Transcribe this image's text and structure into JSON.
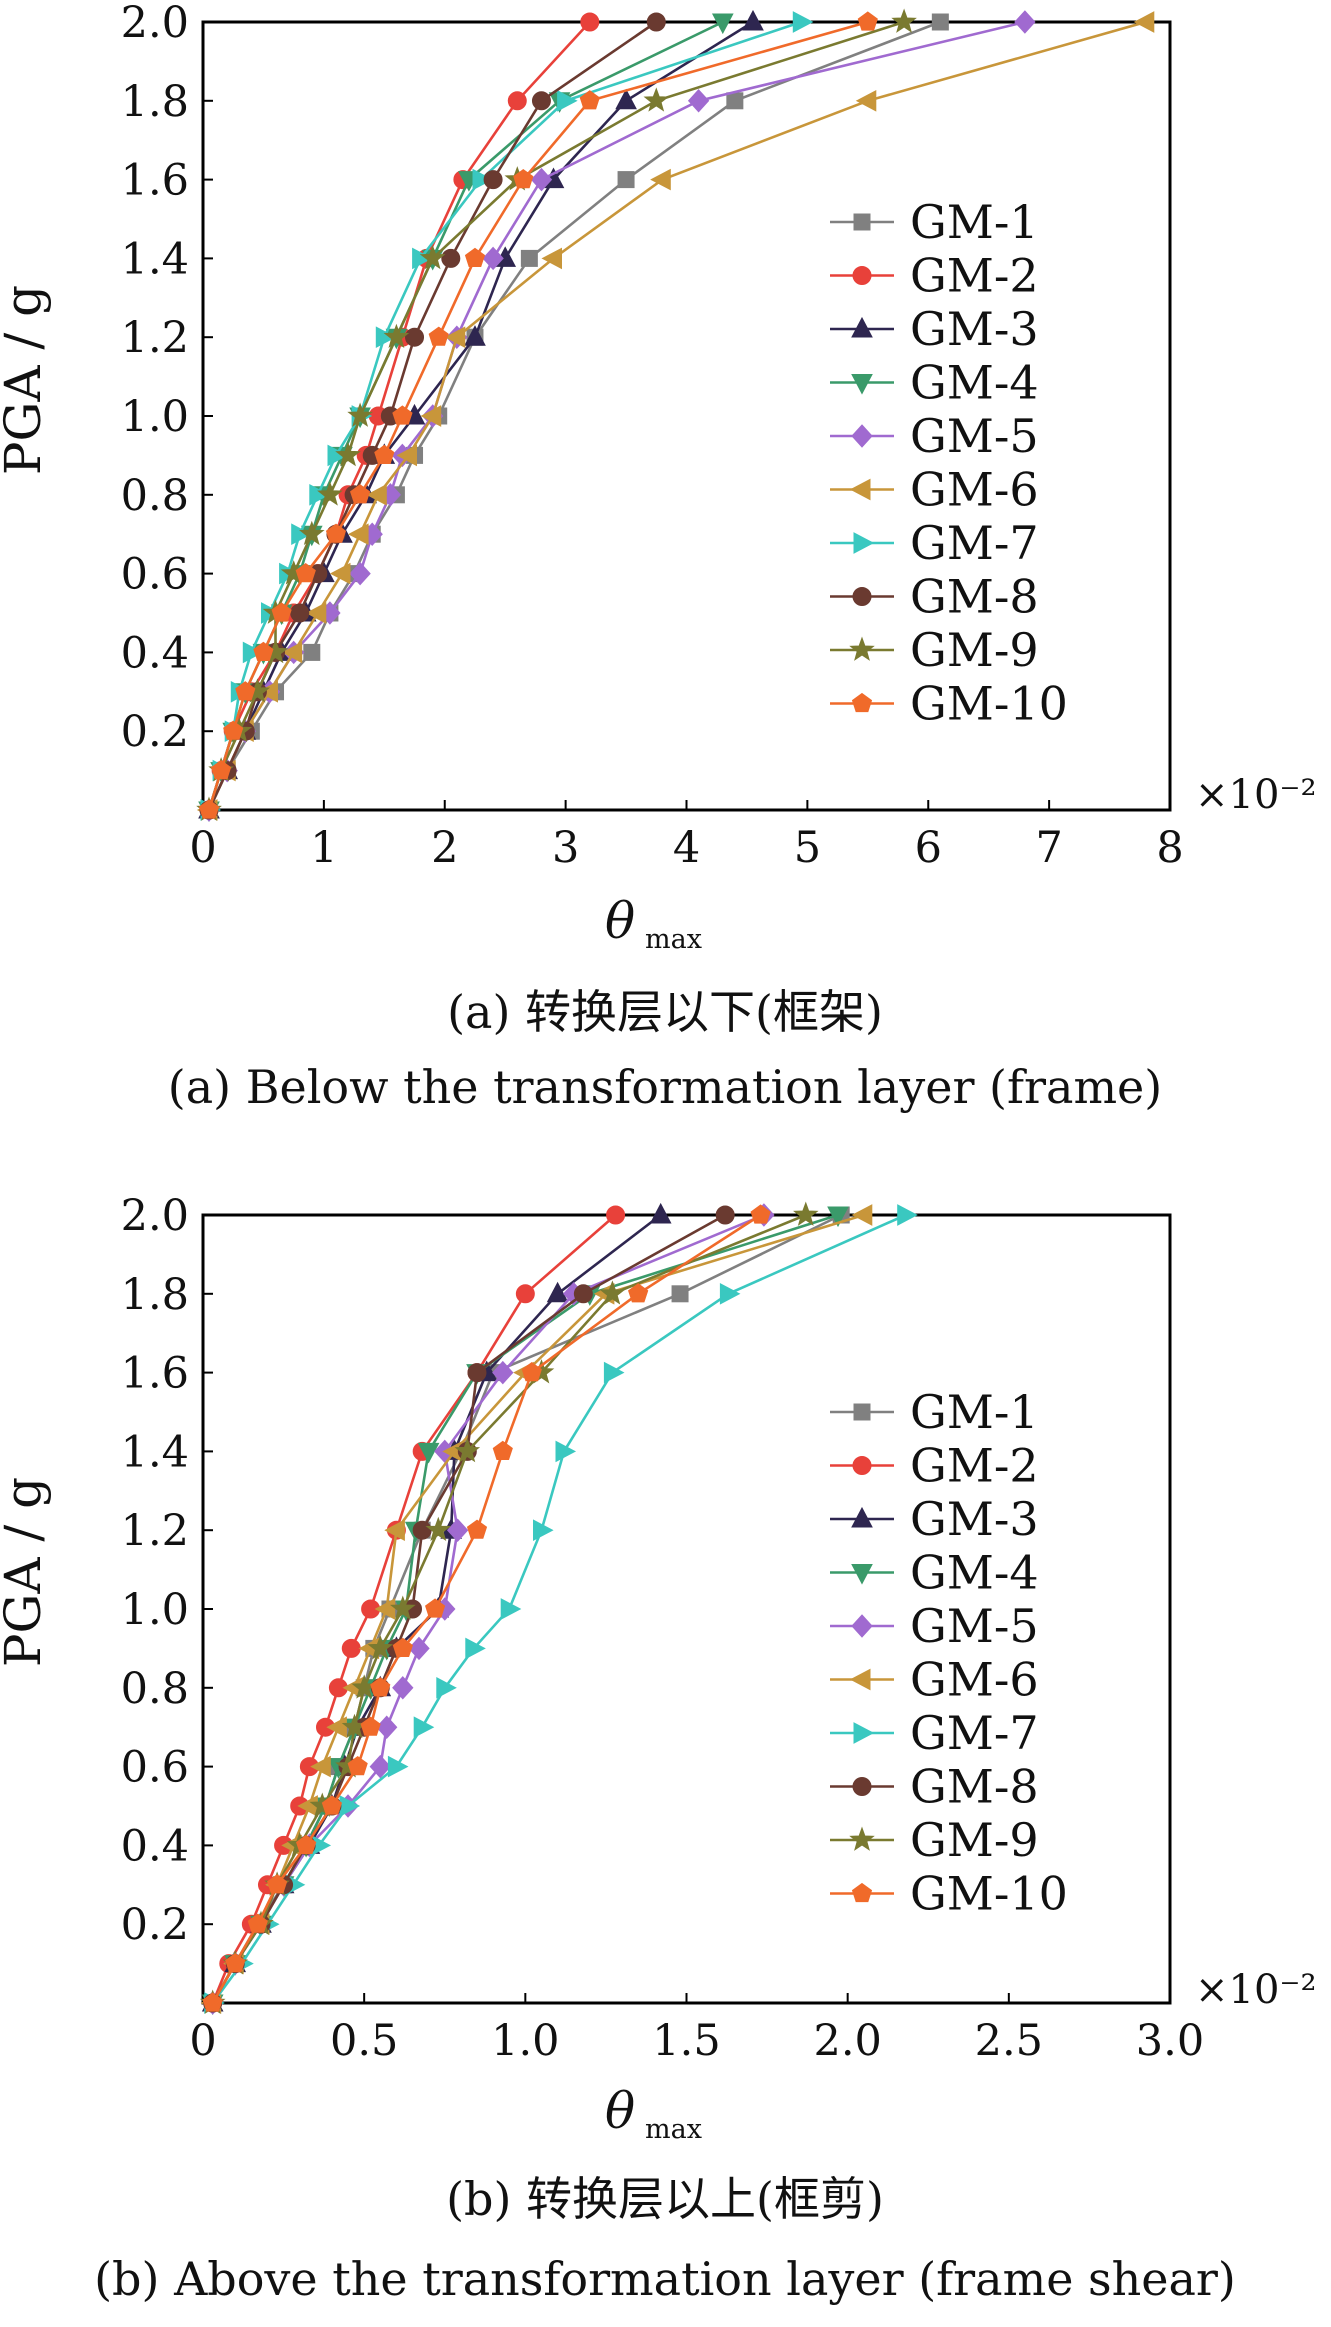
{
  "chart_data": [
    {
      "type": "line",
      "panel": "a",
      "title": "",
      "xlabel": "θ",
      "xlabel_sub": "max",
      "ylabel": "PGA / g",
      "x_multiplier_label": "×10⁻²",
      "xlim": [
        0,
        8
      ],
      "ylim": [
        0,
        2.0
      ],
      "x_ticks": [
        "0",
        "1",
        "2",
        "3",
        "4",
        "5",
        "6",
        "7",
        "8"
      ],
      "y_ticks": [
        "0.2",
        "0.4",
        "0.6",
        "0.8",
        "1.0",
        "1.2",
        "1.4",
        "1.6",
        "1.8",
        "2.0"
      ],
      "caption_cn": "(a) 转换层以下(框架)",
      "caption_en": "(a) Below the transformation layer (frame)",
      "y": [
        0,
        0.1,
        0.2,
        0.3,
        0.4,
        0.5,
        0.6,
        0.7,
        0.8,
        0.9,
        1.0,
        1.2,
        1.4,
        1.6,
        1.8,
        2.0
      ],
      "series": [
        {
          "name": "GM-1",
          "color": "#808080",
          "marker": "square",
          "x": [
            0.05,
            0.2,
            0.4,
            0.6,
            0.9,
            1.05,
            1.25,
            1.4,
            1.6,
            1.75,
            1.95,
            2.25,
            2.7,
            3.5,
            4.4,
            6.1
          ]
        },
        {
          "name": "GM-2",
          "color": "#e8413a",
          "marker": "circle",
          "x": [
            0.05,
            0.15,
            0.25,
            0.4,
            0.6,
            0.75,
            0.95,
            1.1,
            1.2,
            1.35,
            1.45,
            1.65,
            1.85,
            2.15,
            2.6,
            3.2
          ]
        },
        {
          "name": "GM-3",
          "color": "#2e2650",
          "marker": "triangle-up",
          "x": [
            0.05,
            0.2,
            0.35,
            0.5,
            0.65,
            0.85,
            1.0,
            1.15,
            1.35,
            1.5,
            1.75,
            2.25,
            2.5,
            2.9,
            3.5,
            4.55
          ]
        },
        {
          "name": "GM-4",
          "color": "#3a9a6a",
          "marker": "triangle-down",
          "x": [
            0.05,
            0.15,
            0.25,
            0.35,
            0.5,
            0.65,
            0.8,
            0.9,
            1.0,
            1.15,
            1.3,
            1.6,
            1.9,
            2.2,
            2.95,
            4.3
          ]
        },
        {
          "name": "GM-5",
          "color": "#a06ad0",
          "marker": "diamond",
          "x": [
            0.05,
            0.2,
            0.35,
            0.55,
            0.75,
            1.05,
            1.3,
            1.4,
            1.55,
            1.65,
            1.9,
            2.1,
            2.4,
            2.8,
            4.1,
            6.8
          ]
        },
        {
          "name": "GM-6",
          "color": "#c8963a",
          "marker": "triangle-left",
          "x": [
            0.05,
            0.2,
            0.35,
            0.55,
            0.75,
            0.95,
            1.15,
            1.3,
            1.45,
            1.7,
            1.9,
            2.1,
            2.9,
            3.8,
            5.5,
            7.8
          ]
        },
        {
          "name": "GM-7",
          "color": "#3ac8c0",
          "marker": "triangle-right",
          "x": [
            0.05,
            0.15,
            0.25,
            0.3,
            0.4,
            0.55,
            0.7,
            0.8,
            0.95,
            1.1,
            1.3,
            1.5,
            1.8,
            2.3,
            3.0,
            4.95
          ]
        },
        {
          "name": "GM-8",
          "color": "#6a3a30",
          "marker": "circle",
          "x": [
            0.05,
            0.2,
            0.35,
            0.45,
            0.6,
            0.8,
            0.95,
            1.1,
            1.25,
            1.4,
            1.55,
            1.75,
            2.05,
            2.4,
            2.8,
            3.75
          ]
        },
        {
          "name": "GM-9",
          "color": "#7a7a30",
          "marker": "star",
          "x": [
            0.05,
            0.15,
            0.3,
            0.45,
            0.6,
            0.6,
            0.75,
            0.9,
            1.05,
            1.2,
            1.3,
            1.6,
            1.9,
            2.6,
            3.75,
            5.8
          ]
        },
        {
          "name": "GM-10",
          "color": "#f06a2a",
          "marker": "pentagon",
          "x": [
            0.05,
            0.15,
            0.25,
            0.35,
            0.5,
            0.65,
            0.85,
            1.1,
            1.3,
            1.5,
            1.65,
            1.95,
            2.25,
            2.65,
            3.2,
            5.5
          ]
        }
      ]
    },
    {
      "type": "line",
      "panel": "b",
      "title": "",
      "xlabel": "θ",
      "xlabel_sub": "max",
      "ylabel": "PGA / g",
      "x_multiplier_label": "×10⁻²",
      "xlim": [
        0,
        3.0
      ],
      "ylim": [
        0,
        2.0
      ],
      "x_ticks": [
        "0",
        "0.5",
        "1.0",
        "1.5",
        "2.0",
        "2.5",
        "3.0"
      ],
      "y_ticks": [
        "0.2",
        "0.4",
        "0.6",
        "0.8",
        "1.0",
        "1.2",
        "1.4",
        "1.6",
        "1.8",
        "2.0"
      ],
      "caption_cn": "(b) 转换层以上(框剪)",
      "caption_en": "(b) Above the transformation layer (frame shear)",
      "y": [
        0,
        0.1,
        0.2,
        0.3,
        0.4,
        0.5,
        0.6,
        0.7,
        0.8,
        0.9,
        1.0,
        1.2,
        1.4,
        1.6,
        1.8,
        2.0
      ],
      "series": [
        {
          "name": "GM-1",
          "color": "#808080",
          "marker": "square",
          "x": [
            0.03,
            0.1,
            0.17,
            0.25,
            0.32,
            0.38,
            0.42,
            0.47,
            0.5,
            0.53,
            0.58,
            0.68,
            0.8,
            0.9,
            1.48,
            1.98
          ]
        },
        {
          "name": "GM-2",
          "color": "#e8413a",
          "marker": "circle",
          "x": [
            0.03,
            0.08,
            0.15,
            0.2,
            0.25,
            0.3,
            0.33,
            0.38,
            0.42,
            0.46,
            0.52,
            0.6,
            0.68,
            0.85,
            1.0,
            1.28
          ]
        },
        {
          "name": "GM-3",
          "color": "#2e2650",
          "marker": "triangle-up",
          "x": [
            0.03,
            0.1,
            0.18,
            0.25,
            0.33,
            0.4,
            0.44,
            0.48,
            0.55,
            0.6,
            0.73,
            0.77,
            0.78,
            0.88,
            1.1,
            1.42
          ]
        },
        {
          "name": "GM-4",
          "color": "#3a9a6a",
          "marker": "triangle-down",
          "x": [
            0.03,
            0.1,
            0.18,
            0.25,
            0.32,
            0.38,
            0.42,
            0.47,
            0.52,
            0.57,
            0.63,
            0.66,
            0.7,
            0.85,
            1.2,
            1.97
          ]
        },
        {
          "name": "GM-5",
          "color": "#a06ad0",
          "marker": "diamond",
          "x": [
            0.03,
            0.1,
            0.18,
            0.25,
            0.33,
            0.45,
            0.55,
            0.57,
            0.62,
            0.67,
            0.75,
            0.79,
            0.75,
            0.93,
            1.15,
            1.74
          ]
        },
        {
          "name": "GM-6",
          "color": "#c8963a",
          "marker": "triangle-left",
          "x": [
            0.03,
            0.1,
            0.18,
            0.23,
            0.28,
            0.33,
            0.37,
            0.42,
            0.47,
            0.52,
            0.57,
            0.6,
            0.78,
            1.0,
            1.25,
            2.05
          ]
        },
        {
          "name": "GM-7",
          "color": "#3ac8c0",
          "marker": "triangle-right",
          "x": [
            0.03,
            0.12,
            0.2,
            0.28,
            0.36,
            0.45,
            0.6,
            0.68,
            0.75,
            0.84,
            0.95,
            1.05,
            1.12,
            1.27,
            1.63,
            2.18
          ]
        },
        {
          "name": "GM-8",
          "color": "#6a3a30",
          "marker": "circle",
          "x": [
            0.03,
            0.1,
            0.18,
            0.25,
            0.32,
            0.4,
            0.45,
            0.5,
            0.55,
            0.6,
            0.65,
            0.68,
            0.82,
            0.85,
            1.18,
            1.62
          ]
        },
        {
          "name": "GM-9",
          "color": "#7a7a30",
          "marker": "star",
          "x": [
            0.03,
            0.1,
            0.18,
            0.23,
            0.3,
            0.37,
            0.45,
            0.47,
            0.5,
            0.55,
            0.62,
            0.73,
            0.82,
            1.05,
            1.27,
            1.87
          ]
        },
        {
          "name": "GM-10",
          "color": "#f06a2a",
          "marker": "pentagon",
          "x": [
            0.03,
            0.1,
            0.17,
            0.23,
            0.32,
            0.4,
            0.48,
            0.52,
            0.55,
            0.62,
            0.72,
            0.85,
            0.93,
            1.02,
            1.35,
            1.73
          ]
        }
      ]
    }
  ]
}
